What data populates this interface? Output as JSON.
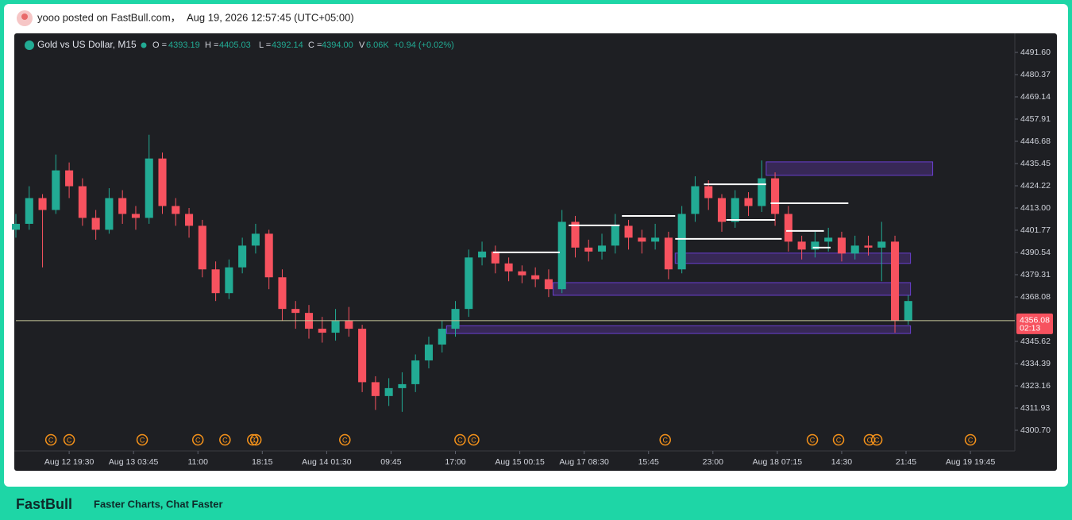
{
  "header": {
    "posted": "yooo posted on FastBull.com，",
    "time": "Aug 19, 2026 12:57:45 (UTC+05:00)"
  },
  "footer": {
    "brand": "FastBull",
    "tagline": "Faster Charts, Chat Faster"
  },
  "chart_data": {
    "type": "candlestick",
    "legend": {
      "symbol": "Gold vs US Dollar, M15",
      "o_label": "O =",
      "o": "4393.19",
      "h_label": "H =",
      "h": "4405.03",
      "l_label": "L =",
      "l": "4392.14",
      "c_label": "C =",
      "c": "4394.00",
      "v_label": "V",
      "v": "6.06K",
      "change": "+0.94 (+0.02%)"
    },
    "up_color": "#22ab94",
    "down_color": "#f7525f",
    "x": [
      0,
      6,
      12,
      18,
      24,
      30,
      36,
      42,
      48,
      54,
      60,
      66,
      72,
      78,
      84,
      90,
      96,
      102,
      108,
      114,
      120,
      126,
      132,
      138,
      144,
      150,
      156,
      162,
      168,
      174,
      180,
      186,
      192,
      198,
      204,
      210,
      216,
      222,
      228,
      234,
      240,
      246,
      252,
      258,
      264,
      270,
      276,
      282,
      288,
      294,
      300,
      306,
      312,
      318,
      324,
      330,
      336,
      342,
      348,
      354,
      360,
      366,
      372,
      378,
      384,
      390,
      396,
      402
    ],
    "open": [
      4402,
      4405,
      4418,
      4412,
      4432,
      4424,
      4408,
      4402,
      4418,
      4410,
      4408,
      4438,
      4414,
      4410,
      4404,
      4382,
      4370,
      4383,
      4394,
      4400,
      4378,
      4362,
      4360,
      4352,
      4350,
      4356,
      4352,
      4325,
      4318,
      4322,
      4324,
      4336,
      4344,
      4352,
      4362,
      4388,
      4391,
      4385,
      4381,
      4379,
      4377,
      4372,
      4406,
      4393,
      4391,
      4394,
      4404,
      4398,
      4396,
      4398,
      4382,
      4410,
      4424,
      4418,
      4406,
      4418,
      4414,
      4428,
      4410,
      4396,
      4392,
      4396,
      4398,
      4390,
      4394,
      4393,
      4396,
      4356
    ],
    "high": [
      4410,
      4424,
      4420,
      4440,
      4436,
      4428,
      4412,
      4423,
      4422,
      4414,
      4450,
      4441,
      4418,
      4413,
      4407,
      4386,
      4387,
      4398,
      4405,
      4402,
      4382,
      4366,
      4364,
      4358,
      4362,
      4363,
      4354,
      4328,
      4327,
      4330,
      4339,
      4348,
      4356,
      4366,
      4392,
      4396,
      4394,
      4388,
      4384,
      4383,
      4382,
      4412,
      4409,
      4397,
      4400,
      4410,
      4407,
      4402,
      4405,
      4401,
      4414,
      4429,
      4427,
      4420,
      4422,
      4421,
      4437,
      4431,
      4414,
      4399,
      4401,
      4403,
      4401,
      4399,
      4399,
      4406,
      4399,
      4369
    ],
    "low": [
      4398,
      4402,
      4383,
      4410,
      4418,
      4404,
      4397,
      4400,
      4405,
      4402,
      4405,
      4410,
      4404,
      4398,
      4378,
      4366,
      4367,
      4380,
      4390,
      4372,
      4356,
      4352,
      4347,
      4345,
      4346,
      4348,
      4320,
      4311,
      4313,
      4310,
      4320,
      4332,
      4340,
      4348,
      4358,
      4384,
      4380,
      4376,
      4375,
      4373,
      4368,
      4370,
      4388,
      4386,
      4387,
      4390,
      4392,
      4390,
      4392,
      4377,
      4380,
      4406,
      4412,
      4401,
      4403,
      4409,
      4411,
      4404,
      4391,
      4387,
      4388,
      4391,
      4386,
      4387,
      4389,
      4376,
      4350,
      4354
    ],
    "close": [
      4405,
      4418,
      4412,
      4432,
      4424,
      4408,
      4402,
      4418,
      4410,
      4408,
      4438,
      4414,
      4410,
      4404,
      4382,
      4370,
      4383,
      4394,
      4400,
      4378,
      4362,
      4360,
      4352,
      4350,
      4356,
      4352,
      4325,
      4318,
      4322,
      4324,
      4336,
      4344,
      4352,
      4362,
      4388,
      4391,
      4385,
      4381,
      4379,
      4377,
      4372,
      4406,
      4393,
      4391,
      4394,
      4404,
      4398,
      4396,
      4398,
      4382,
      4410,
      4424,
      4418,
      4406,
      4418,
      4414,
      4428,
      4410,
      4396,
      4392,
      4396,
      4398,
      4390,
      4394,
      4393,
      4396,
      4356,
      4366
    ],
    "xlim": [
      0,
      450
    ],
    "xticks": [
      {
        "value": 24,
        "label": "Aug 12 19:30"
      },
      {
        "value": 53,
        "label": "Aug 13 03:45"
      },
      {
        "value": 82,
        "label": "11:00"
      },
      {
        "value": 111,
        "label": "18:15"
      },
      {
        "value": 140,
        "label": "Aug 14 01:30"
      },
      {
        "value": 169,
        "label": "09:45"
      },
      {
        "value": 198,
        "label": "17:00"
      },
      {
        "value": 227,
        "label": "Aug 15 00:15"
      },
      {
        "value": 256,
        "label": "Aug 17 08:30"
      },
      {
        "value": 285,
        "label": "15:45"
      },
      {
        "value": 314,
        "label": "23:00"
      },
      {
        "value": 343,
        "label": "Aug 18 07:15"
      },
      {
        "value": 372,
        "label": "14:30"
      },
      {
        "value": 401,
        "label": "21:45"
      },
      {
        "value": 430,
        "label": "Aug 19 19:45"
      }
    ],
    "ylim": [
      4290.27,
      4501.23
    ],
    "yticks": [
      {
        "value": 4491.6,
        "label": "4491.60"
      },
      {
        "value": 4480.37,
        "label": "4480.37"
      },
      {
        "value": 4469.14,
        "label": "4469.14"
      },
      {
        "value": 4457.91,
        "label": "4457.91"
      },
      {
        "value": 4446.68,
        "label": "4446.68"
      },
      {
        "value": 4435.45,
        "label": "4435.45"
      },
      {
        "value": 4424.22,
        "label": "4424.22"
      },
      {
        "value": 4413,
        "label": "4413.00"
      },
      {
        "value": 4401.77,
        "label": "4401.77"
      },
      {
        "value": 4390.54,
        "label": "4390.54"
      },
      {
        "value": 4379.31,
        "label": "4379.31"
      },
      {
        "value": 4368.08,
        "label": "4368.08"
      },
      {
        "value": 4345.62,
        "label": "4345.62"
      },
      {
        "value": 4334.39,
        "label": "4334.39"
      },
      {
        "value": 4323.16,
        "label": "4323.16"
      },
      {
        "value": 4311.93,
        "label": "4311.93"
      },
      {
        "value": 4300.7,
        "label": "4300.70"
      }
    ],
    "last_price": 4356.08,
    "countdown": "02:13",
    "zones": [
      {
        "x": [
          338,
          413
        ],
        "y": [
          4429.5,
          4436.3
        ]
      },
      {
        "x": [
          297,
          403
        ],
        "y": [
          4385.0,
          4390.2
        ]
      },
      {
        "x": [
          242,
          403
        ],
        "y": [
          4368.9,
          4375.3
        ]
      },
      {
        "x": [
          194,
          403
        ],
        "y": [
          4349.6,
          4353.5
        ]
      }
    ],
    "levels": [
      {
        "x": [
          215,
          245
        ],
        "y": 4390.6
      },
      {
        "x": [
          249,
          272
        ],
        "y": 4404.2
      },
      {
        "x": [
          273,
          297
        ],
        "y": 4409.0
      },
      {
        "x": [
          297,
          345
        ],
        "y": 4397.4
      },
      {
        "x": [
          310,
          338
        ],
        "y": 4425.0
      },
      {
        "x": [
          340,
          375
        ],
        "y": 4415.4
      },
      {
        "x": [
          320,
          342
        ],
        "y": 4407.0
      },
      {
        "x": [
          347,
          364
        ],
        "y": 4401.4
      },
      {
        "x": [
          359,
          367
        ],
        "y": 4393.0
      }
    ],
    "events": {
      "label": "C",
      "x": [
        15.8,
        24,
        56.9,
        82,
        94.2,
        106.7,
        108.1,
        148.2,
        200.1,
        206.2,
        292.5,
        358.8,
        370.6,
        384.5,
        387.8,
        430
      ]
    }
  }
}
